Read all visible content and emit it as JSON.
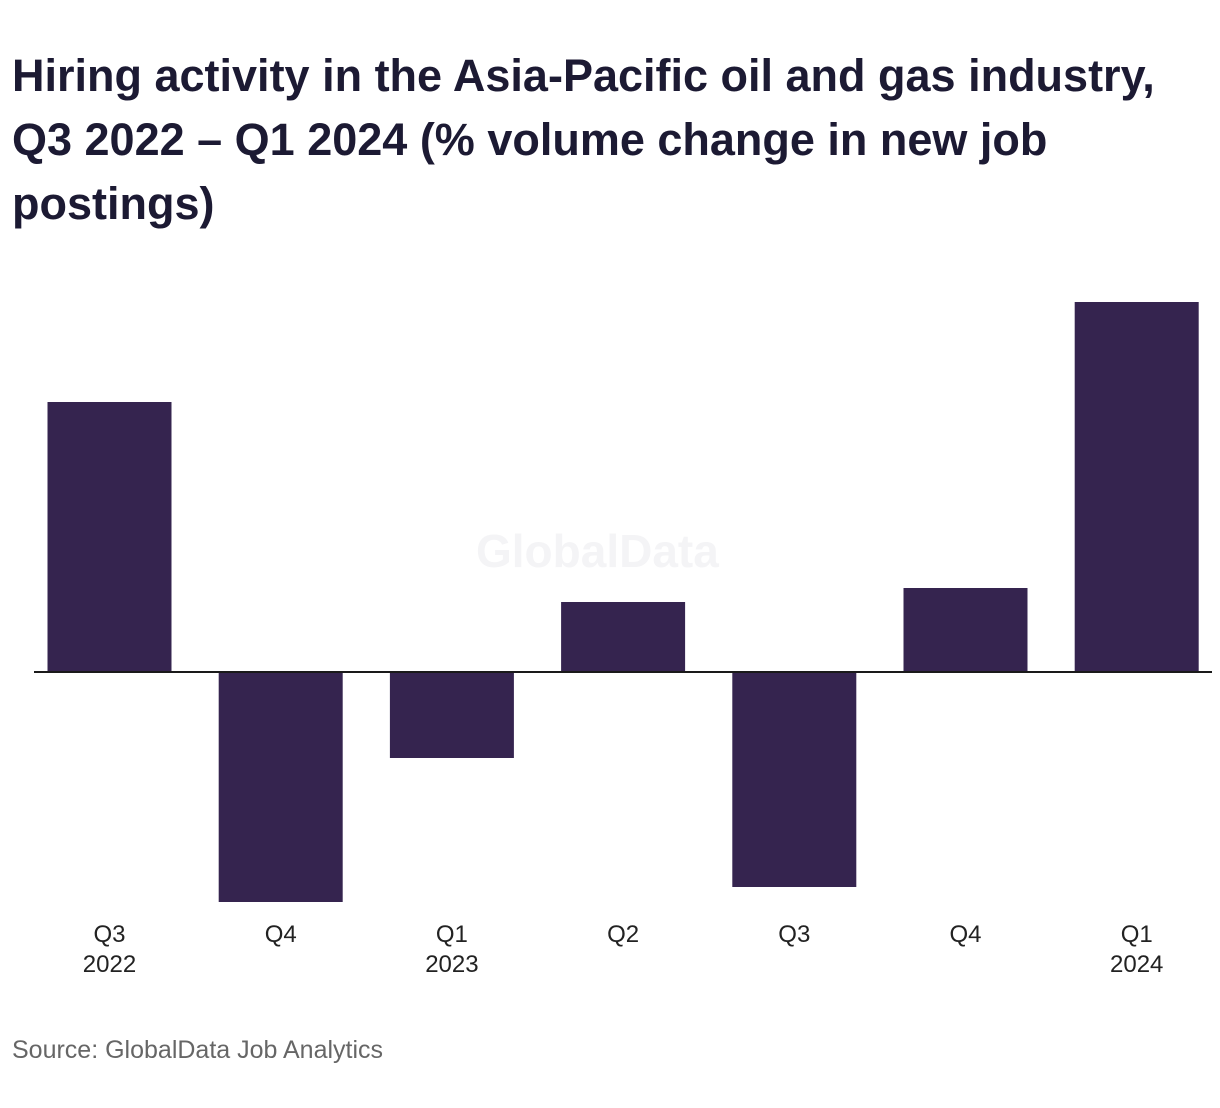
{
  "chart_data": {
    "type": "bar",
    "title": "Hiring activity in the Asia-Pacific oil and gas industry, Q3 2022 – Q1 2024 (% volume change in new job postings)",
    "categories": [
      [
        "Q3",
        "2022"
      ],
      [
        "Q4"
      ],
      [
        "Q1",
        "2023"
      ],
      [
        "Q2"
      ],
      [
        "Q3"
      ],
      [
        "Q4"
      ],
      [
        "Q1",
        "2024"
      ]
    ],
    "values": [
      27,
      -23,
      -8.6,
      7,
      -21.5,
      8.4,
      37
    ],
    "ylim": [
      -23,
      37
    ],
    "grid": false,
    "bar_color": "#35244f",
    "axis_color": "#1a1a1a"
  },
  "watermark": "GlobalData",
  "source": "Source: GlobalData Job Analytics"
}
